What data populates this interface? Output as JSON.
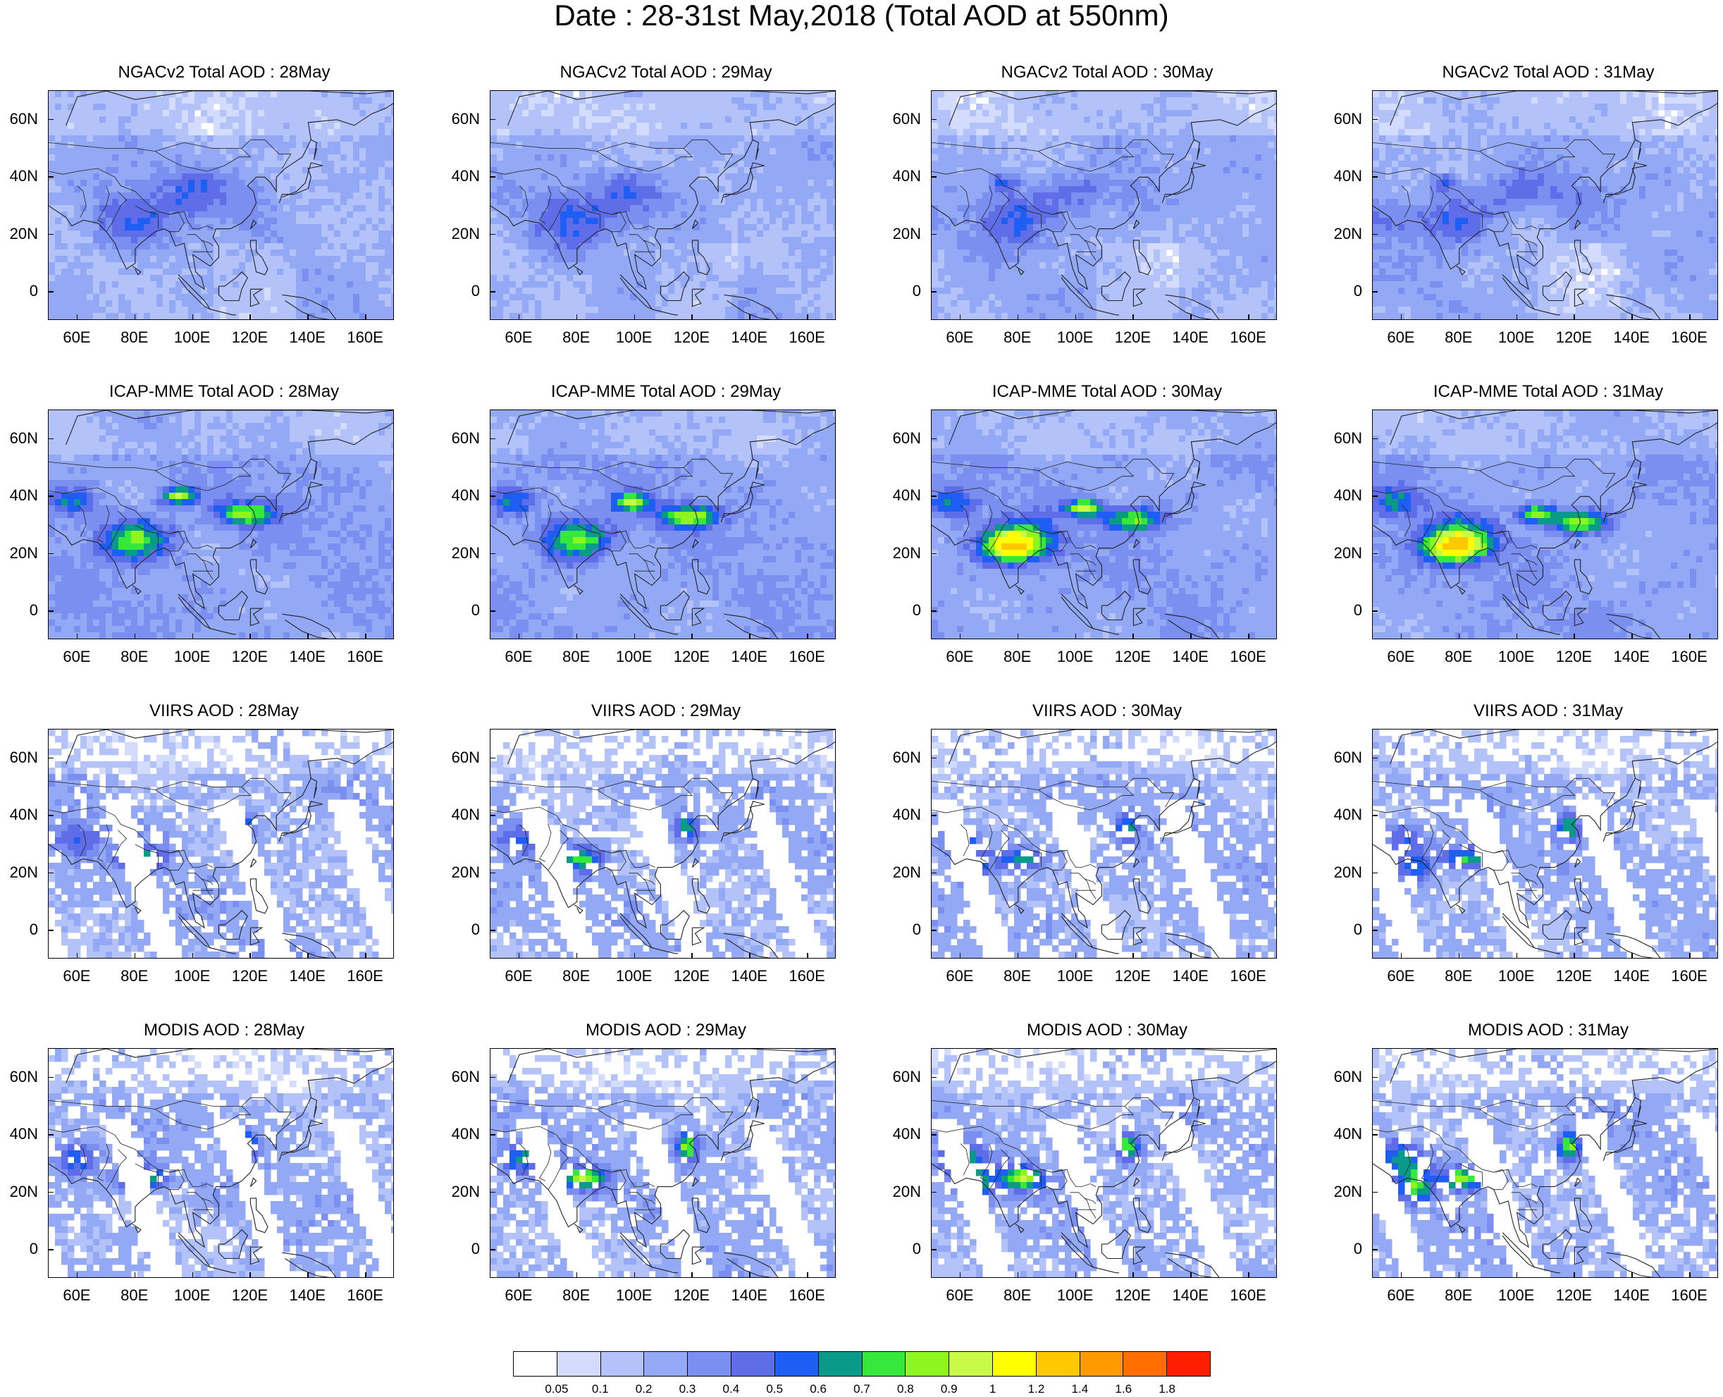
{
  "title": "Date : 28-31st May,2018 (Total AOD at 550nm)",
  "map": {
    "lon_range": [
      50,
      170
    ],
    "lat_range": [
      -10,
      70
    ],
    "lat_ticks": [
      "60N",
      "40N",
      "20N",
      "0"
    ],
    "lat_values": [
      60,
      40,
      20,
      0
    ],
    "lon_ticks": [
      "60E",
      "80E",
      "100E",
      "120E",
      "140E",
      "160E"
    ],
    "lon_values": [
      60,
      80,
      100,
      120,
      140,
      160
    ]
  },
  "rows": [
    {
      "source": "NGACv2",
      "panels": [
        {
          "title": "NGACv2 Total AOD : 28May"
        },
        {
          "title": "NGACv2 Total AOD : 29May"
        },
        {
          "title": "NGACv2 Total AOD : 30May"
        },
        {
          "title": "NGACv2 Total AOD : 31May"
        }
      ]
    },
    {
      "source": "ICAP-MME",
      "panels": [
        {
          "title": "ICAP-MME Total AOD : 28May"
        },
        {
          "title": "ICAP-MME Total AOD : 29May"
        },
        {
          "title": "ICAP-MME Total AOD : 30May"
        },
        {
          "title": "ICAP-MME Total AOD : 31May"
        }
      ]
    },
    {
      "source": "VIIRS",
      "panels": [
        {
          "title": "VIIRS AOD : 28May"
        },
        {
          "title": "VIIRS AOD : 29May"
        },
        {
          "title": "VIIRS AOD : 30May"
        },
        {
          "title": "VIIRS AOD : 31May"
        }
      ]
    },
    {
      "source": "MODIS",
      "panels": [
        {
          "title": "MODIS AOD : 28May"
        },
        {
          "title": "MODIS AOD : 29May"
        },
        {
          "title": "MODIS AOD : 30May"
        },
        {
          "title": "MODIS AOD : 31May"
        }
      ]
    }
  ],
  "colorbar": {
    "labels": [
      "0.05",
      "0.1",
      "0.2",
      "0.3",
      "0.4",
      "0.5",
      "0.6",
      "0.7",
      "0.8",
      "0.9",
      "1",
      "1.2",
      "1.4",
      "1.6",
      "1.8"
    ],
    "colors": [
      "#ffffff",
      "#d3dcfc",
      "#b3c3fa",
      "#93a9f5",
      "#7a8ff0",
      "#5f6de8",
      "#1e5ef5",
      "#0a9a8a",
      "#37e83c",
      "#8ff51e",
      "#c8fa46",
      "#ffff00",
      "#ffc800",
      "#ff9b00",
      "#ff6e00",
      "#ff1e00"
    ]
  }
}
